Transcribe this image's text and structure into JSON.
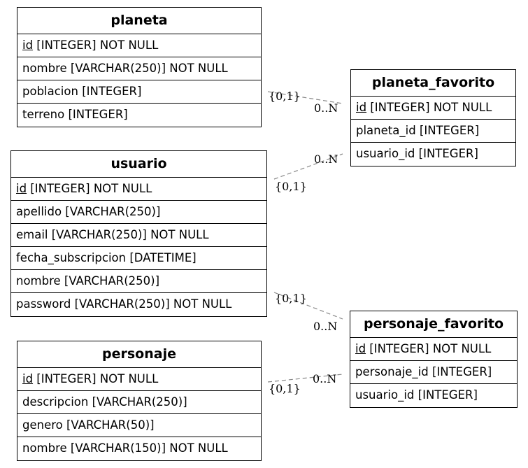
{
  "entities": {
    "planeta": {
      "name": "planeta",
      "attributes": [
        {
          "pk": "id",
          "rest": " [INTEGER] NOT NULL"
        },
        {
          "text": "nombre [VARCHAR(250)] NOT NULL"
        },
        {
          "text": "poblacion [INTEGER]"
        },
        {
          "text": "terreno [INTEGER]"
        }
      ]
    },
    "usuario": {
      "name": "usuario",
      "attributes": [
        {
          "pk": "id",
          "rest": " [INTEGER] NOT NULL"
        },
        {
          "text": "apellido [VARCHAR(250)]"
        },
        {
          "text": "email [VARCHAR(250)] NOT NULL"
        },
        {
          "text": "fecha_subscripcion [DATETIME]"
        },
        {
          "text": "nombre [VARCHAR(250)]"
        },
        {
          "text": "password [VARCHAR(250)] NOT NULL"
        }
      ]
    },
    "personaje": {
      "name": "personaje",
      "attributes": [
        {
          "pk": "id",
          "rest": " [INTEGER] NOT NULL"
        },
        {
          "text": "descripcion [VARCHAR(250)]"
        },
        {
          "text": "genero [VARCHAR(50)]"
        },
        {
          "text": "nombre [VARCHAR(150)] NOT NULL"
        }
      ]
    },
    "planeta_favorito": {
      "name": "planeta_favorito",
      "attributes": [
        {
          "pk": "id",
          "rest": " [INTEGER] NOT NULL"
        },
        {
          "text": "planeta_id [INTEGER]"
        },
        {
          "text": "usuario_id [INTEGER]"
        }
      ]
    },
    "personaje_favorito": {
      "name": "personaje_favorito",
      "attributes": [
        {
          "pk": "id",
          "rest": " [INTEGER] NOT NULL"
        },
        {
          "text": "personaje_id [INTEGER]"
        },
        {
          "text": "usuario_id [INTEGER]"
        }
      ]
    }
  },
  "relationships": [
    {
      "from": "planeta",
      "to": "planeta_favorito",
      "from_card": "{0,1}",
      "to_card": "0..N"
    },
    {
      "from": "usuario",
      "to": "planeta_favorito",
      "from_card": "{0,1}",
      "to_card": "0..N"
    },
    {
      "from": "usuario",
      "to": "personaje_favorito",
      "from_card": "{0,1}",
      "to_card": "0..N"
    },
    {
      "from": "personaje",
      "to": "personaje_favorito",
      "from_card": "{0,1}",
      "to_card": "0..N"
    }
  ],
  "colors": {
    "border": "#000000",
    "connector": "#888888",
    "background": "#ffffff"
  }
}
